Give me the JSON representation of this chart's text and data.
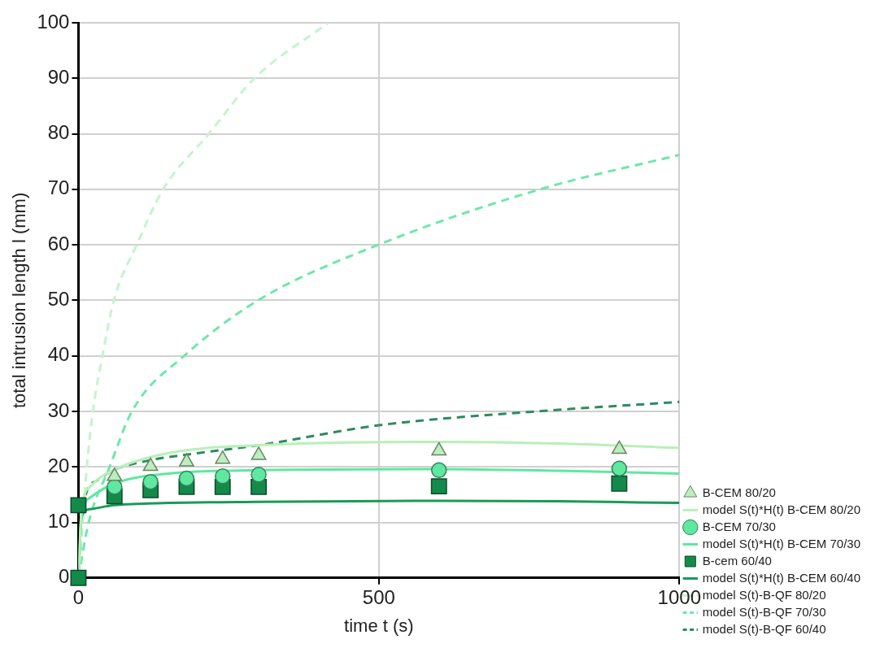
{
  "chart_data": {
    "type": "line",
    "xlabel": "time t (s)",
    "ylabel": "total intrusion length l (mm)",
    "xlim": [
      0,
      1000
    ],
    "ylim": [
      0,
      100
    ],
    "xticks": [
      0,
      500,
      1000
    ],
    "yticks": [
      0,
      10,
      20,
      30,
      40,
      50,
      60,
      70,
      80,
      90,
      100
    ],
    "grid": true,
    "legend": "right",
    "series": [
      {
        "name": "B-CEM 80/20",
        "type": "scatter",
        "marker": "triangle",
        "color": "#bdeebd",
        "x": [
          60,
          120,
          180,
          240,
          300,
          600,
          900
        ],
        "values": [
          18.3,
          20.1,
          20.9,
          21.4,
          22.1,
          22.9,
          23.2
        ]
      },
      {
        "name": "model S(t)*H(t) B-CEM 80/20",
        "line_style": "solid",
        "marker": "none",
        "color": "#b8f0b8",
        "x": [
          0,
          5,
          20,
          60,
          150,
          300,
          600,
          800,
          1000
        ],
        "values": [
          0,
          12,
          16.5,
          19.5,
          22.5,
          23.9,
          24.5,
          24.2,
          23.4
        ]
      },
      {
        "name": "B-CEM 70/30",
        "type": "scatter",
        "marker": "circle",
        "color": "#5ee8a0",
        "x": [
          60,
          120,
          180,
          240,
          300,
          600,
          900
        ],
        "values": [
          16.4,
          17.3,
          17.9,
          18.3,
          18.6,
          19.4,
          19.7
        ]
      },
      {
        "name": "model S(t)*H(t) B-CEM 70/30",
        "line_style": "solid",
        "marker": "none",
        "color": "#5ee8a0",
        "x": [
          0,
          5,
          20,
          60,
          150,
          300,
          600,
          800,
          1000
        ],
        "values": [
          0,
          11,
          14.5,
          17,
          18.8,
          19.4,
          19.6,
          19.3,
          18.8
        ]
      },
      {
        "name": "B-cem 60/40",
        "type": "scatter",
        "marker": "square",
        "color": "#138a4a",
        "x": [
          0,
          0,
          60,
          120,
          180,
          240,
          300,
          600,
          900
        ],
        "values": [
          0,
          13.1,
          14.7,
          15.8,
          16.4,
          16.4,
          16.4,
          16.5,
          17.0
        ]
      },
      {
        "name": "model S(t)*H(t) B-CEM 60/40",
        "line_style": "solid",
        "marker": "none",
        "color": "#1a9a5a",
        "x": [
          0,
          5,
          20,
          60,
          150,
          300,
          600,
          800,
          1000
        ],
        "values": [
          0,
          11,
          12.4,
          13.1,
          13.5,
          13.7,
          13.9,
          13.8,
          13.5
        ]
      },
      {
        "name": "model S(t)-B-QF 80/20",
        "line_style": "dashed",
        "marker": "none",
        "color": "#c4f4cc",
        "x": [
          0,
          7,
          14,
          24,
          40,
          59,
          97,
          141,
          217,
          293,
          416
        ],
        "values": [
          0,
          10,
          20,
          30,
          40,
          50,
          60,
          70,
          80,
          90,
          100
        ]
      },
      {
        "name": "model S(t)-B-QF 70/30",
        "line_style": "dashed",
        "marker": "none",
        "color": "#6ee8a8",
        "x": [
          0,
          17,
          52,
          89,
          176,
          299,
          499,
          768,
          1000
        ],
        "values": [
          0,
          10,
          20,
          30,
          40,
          50,
          60,
          70,
          76.2
        ]
      },
      {
        "name": "model S(t)-B-QF 60/40",
        "line_style": "dashed",
        "marker": "none",
        "color": "#2e8a60",
        "x": [
          0,
          10,
          30,
          60,
          120,
          200,
          300,
          500,
          750,
          1000
        ],
        "values": [
          0,
          14,
          17.5,
          19.5,
          21.2,
          22.5,
          23.9,
          27.5,
          29.9,
          31.7
        ]
      }
    ]
  }
}
